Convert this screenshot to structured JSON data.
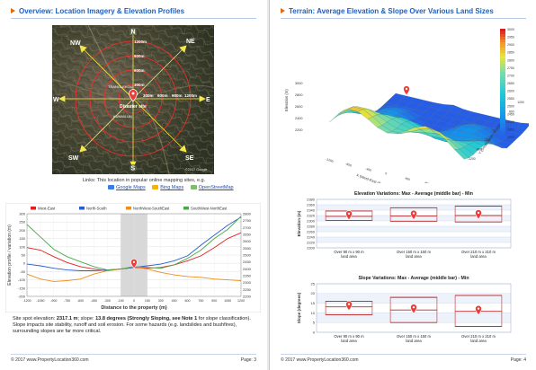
{
  "left_page": {
    "title": "Overview: Location Imagery & Elevation Profiles",
    "compass": {
      "N": "N",
      "NE": "NE",
      "E": "E",
      "SE": "SE",
      "S": "S",
      "SW": "SW",
      "W": "W",
      "NW": "NW"
    },
    "ring_labels": [
      "300m",
      "600m",
      "900m",
      "1200m"
    ],
    "site_label": "Disaster site",
    "place_labels": [
      "TRANGLEKOU",
      "KUNMILUN"
    ],
    "map_copyright": "©2017 Google",
    "links_text": "Links: This location in popular online mapping sites, e.g.",
    "map_links": [
      {
        "label": "Google Maps",
        "icon_color": "#3b7de8"
      },
      {
        "label": "Bing Maps",
        "icon_color": "#f5b400"
      },
      {
        "label": "OpenStreetMap",
        "icon_color": "#7ebc6f"
      }
    ],
    "paragraph": {
      "lead": "Site spot elevation: ",
      "elevation": "2317.1 m",
      "mid1": "; slope: ",
      "slope": "13.8 degrees (Strongly Sloping, see Note 1",
      "rest": " for slope classification). Slope impacts site stability, runoff and soil erosion. For some hazards (e.g. landslides and bushfires), surrounding slopes are far more critical."
    },
    "footer_left": "© 2017 www.PropertyLocation360.com",
    "footer_right": "Page: 3"
  },
  "right_page": {
    "title": "Terrain: Average Elevation & Slope Over Various Land Sizes",
    "surface": {
      "z_label": "Elevation (m)",
      "x_label": "X (West-East direction, m)",
      "y_label": "Y (South-North direction, m)",
      "colorbar_ticks": [
        "3000",
        "2950",
        "2900",
        "2850",
        "2800",
        "2750",
        "2700",
        "2650",
        "2600",
        "2550",
        "2500",
        "2450",
        "2400",
        "2350",
        "2300"
      ],
      "z_ticks": [
        "3000",
        "2800",
        "2600",
        "2400",
        "2200"
      ],
      "x_ticks": [
        "-1200",
        "-800",
        "-400",
        "0",
        "400",
        "800",
        "1200"
      ],
      "y_ticks": [
        "-1200",
        "-800",
        "-400",
        "0",
        "400",
        "800",
        "1200"
      ]
    },
    "footer_left": "© 2017 www.PropertyLocation360.com",
    "footer_right": "Page: 4"
  },
  "chart_data": [
    {
      "type": "line",
      "title": "",
      "xlabel": "Distance to the property (m)",
      "ylabel": "Elevation profile / variation (m)",
      "x": [
        -1200,
        -1050,
        -900,
        -750,
        -600,
        -450,
        -300,
        -150,
        0,
        150,
        300,
        450,
        600,
        750,
        900,
        1050,
        1200
      ],
      "x_ticks": [
        "-1200",
        "-1050",
        "-900",
        "-750",
        "-600",
        "-450",
        "-300",
        "-150",
        "0",
        "150",
        "300",
        "450",
        "600",
        "750",
        "900",
        "1050",
        "1200"
      ],
      "ylim": [
        -200,
        300
      ],
      "y_ticks_left": [
        "300",
        "250",
        "200",
        "150",
        "100",
        "50",
        "0",
        "-50",
        "-100",
        "-150",
        "-200"
      ],
      "y2lim": [
        2200,
        2800
      ],
      "y_ticks_right": [
        "2800",
        "2750",
        "2700",
        "2650",
        "2600",
        "2550",
        "2500",
        "2450",
        "2400",
        "2350",
        "2300",
        "2250",
        "2200"
      ],
      "highlight_range": [
        -150,
        150
      ],
      "series": [
        {
          "name": "West-East",
          "color": "#e02020",
          "values": [
            95,
            80,
            40,
            5,
            -20,
            -35,
            -45,
            -35,
            -25,
            -30,
            -25,
            -10,
            15,
            45,
            95,
            150,
            185
          ]
        },
        {
          "name": "North-South",
          "color": "#2a5ccf",
          "values": [
            -5,
            -15,
            -30,
            -40,
            -45,
            -45,
            -40,
            -35,
            -25,
            -15,
            -5,
            15,
            45,
            110,
            170,
            230,
            280
          ]
        },
        {
          "name": "NorthWest-SouthEast",
          "color": "#f08c18",
          "values": [
            -65,
            -95,
            -110,
            -105,
            -95,
            -65,
            -45,
            -35,
            -20,
            -35,
            -55,
            -70,
            -80,
            -85,
            -95,
            -100,
            -105
          ]
        },
        {
          "name": "SouthWest-NorthEast",
          "color": "#48a84a",
          "values": [
            235,
            160,
            85,
            40,
            10,
            -20,
            -40,
            -35,
            -20,
            -25,
            -30,
            -10,
            30,
            80,
            150,
            205,
            285
          ]
        }
      ]
    },
    {
      "type": "bar",
      "title": "Elevation Variations: Max - Average (middle bar) - Min",
      "ylabel": "Elevation (m)",
      "categories": [
        "Over 90 m x 90 m land area",
        "Over 150 m x 150 m land area",
        "Over 210 m x 210 m land area"
      ],
      "ylim": [
        2200,
        2380
      ],
      "y_ticks": [
        "2380",
        "2360",
        "2340",
        "2320",
        "2300",
        "2280",
        "2260",
        "2240",
        "2220",
        "2200"
      ],
      "series": [
        {
          "name": "Max",
          "values": [
            2337,
            2349,
            2355
          ]
        },
        {
          "name": "Average",
          "values": [
            2317,
            2318,
            2320
          ]
        },
        {
          "name": "Min",
          "values": [
            2302,
            2299,
            2296
          ]
        }
      ]
    },
    {
      "type": "bar",
      "title": "Slope Variations: Max - Average (middle bar) - Min",
      "ylabel": "Slope (degrees)",
      "categories": [
        "Over 90 m x 90 m land area",
        "Over 150 m x 150 m land area",
        "Over 210 m x 210 m land area"
      ],
      "ylim": [
        0,
        25
      ],
      "y_ticks": [
        "25",
        "20",
        "15",
        "10",
        "5",
        "0"
      ],
      "series": [
        {
          "name": "Max",
          "values": [
            16,
            18,
            19
          ]
        },
        {
          "name": "Average",
          "values": [
            13.1,
            11.5,
            10.8
          ]
        },
        {
          "name": "Min",
          "values": [
            9,
            5,
            3
          ]
        }
      ]
    }
  ]
}
